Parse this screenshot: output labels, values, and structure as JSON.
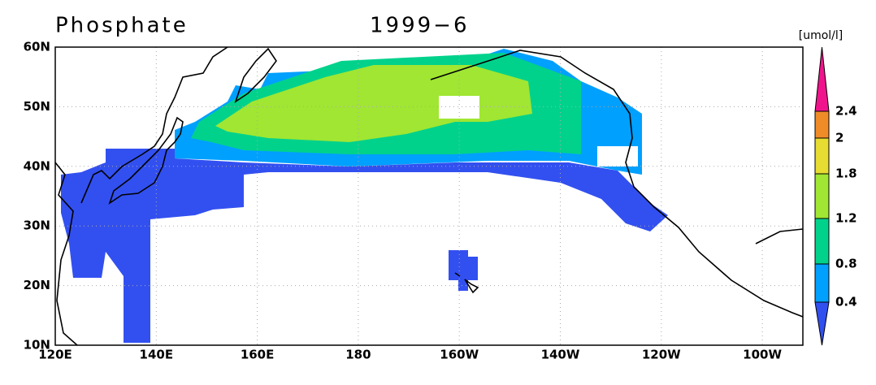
{
  "title": "Phosphate",
  "date": "1999−6",
  "units": "[umol/l]",
  "lat_labels": [
    "60N",
    "50N",
    "40N",
    "30N",
    "20N",
    "10N"
  ],
  "lon_labels": [
    "120E",
    "140E",
    "160E",
    "180",
    "160W",
    "140W",
    "120W",
    "100W"
  ],
  "colorbar": {
    "levels": [
      0.4,
      0.8,
      1.2,
      1.8,
      2,
      2.4
    ],
    "colors": [
      "#3250f0",
      "#00a0ff",
      "#00d28c",
      "#a0e632",
      "#e6dc32",
      "#f08c28",
      "#f0148c"
    ]
  }
}
